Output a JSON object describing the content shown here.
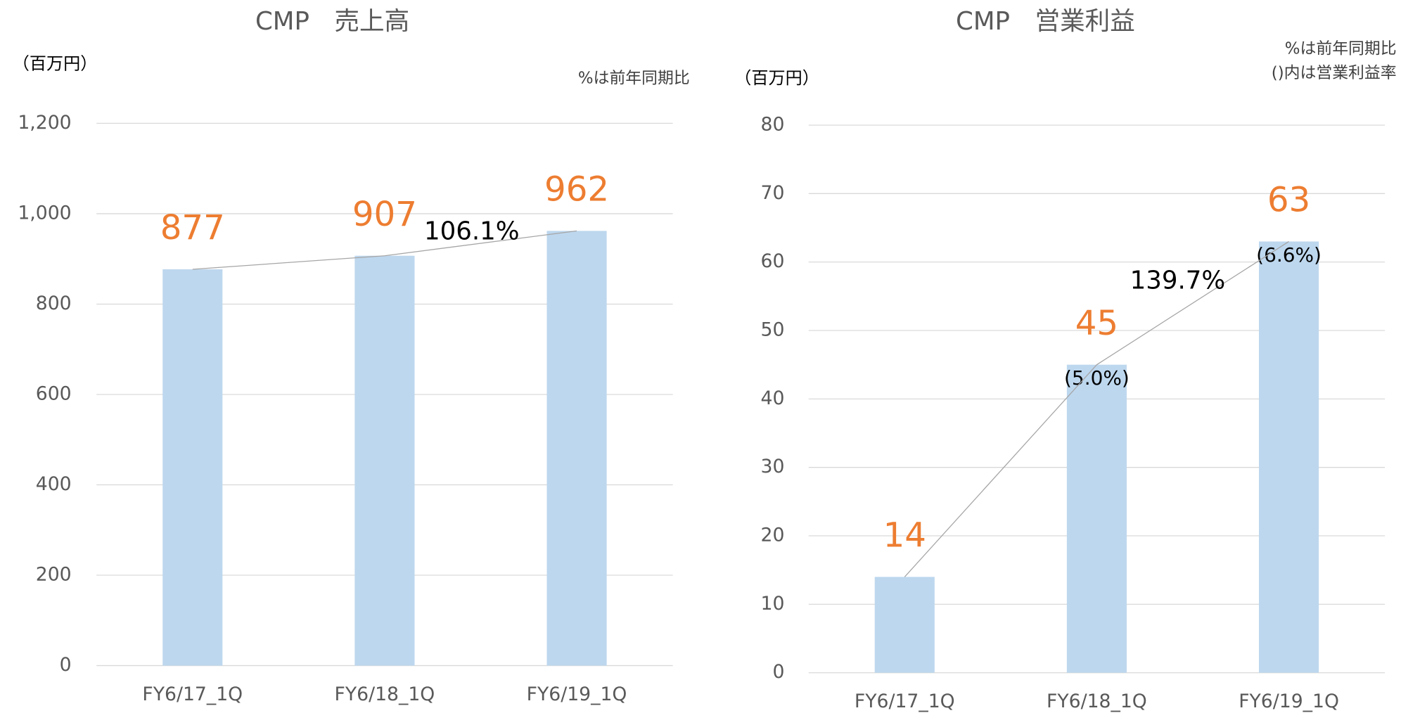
{
  "chart_data": [
    {
      "type": "bar",
      "title": "CMP　売上高",
      "y_label": "（百万円）",
      "notes": [
        "%は前年同期比"
      ],
      "categories": [
        "FY6/17_1Q",
        "FY6/18_1Q",
        "FY6/19_1Q"
      ],
      "values": [
        877,
        907,
        962
      ],
      "color": "#bdd7ee",
      "label_color": "#ed7d31",
      "line_color": "#a6a6a6",
      "ylim": [
        0,
        1200
      ],
      "yticks": [
        0,
        200,
        400,
        600,
        800,
        {
          "value": 1000,
          "label": "1,000"
        },
        {
          "value": 1200,
          "label": "1,200"
        }
      ],
      "grid": true,
      "growth_label": "106.1%"
    },
    {
      "type": "bar",
      "title": "CMP　営業利益",
      "y_label": "（百万円）",
      "notes": [
        "%は前年同期比",
        "()内は営業利益率"
      ],
      "categories": [
        "FY6/17_1Q",
        "FY6/18_1Q",
        "FY6/19_1Q"
      ],
      "values": [
        14,
        45,
        63
      ],
      "color": "#bdd7ee",
      "label_color": "#ed7d31",
      "line_color": "#a6a6a6",
      "margin_labels": [
        null,
        "(5.0%)",
        "(6.6%)"
      ],
      "ylim": [
        0,
        80
      ],
      "yticks": [
        0,
        10,
        20,
        30,
        40,
        50,
        60,
        70,
        80
      ],
      "grid": true,
      "growth_label": "139.7%"
    }
  ]
}
